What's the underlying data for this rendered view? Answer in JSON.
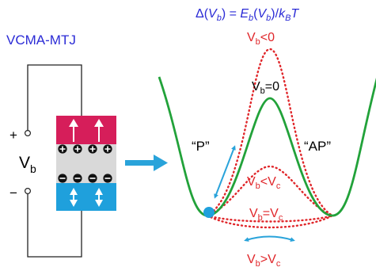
{
  "device_title": "VCMA-MTJ",
  "circuit": {
    "plus": "+",
    "minus": "−",
    "voltage": {
      "main": "V",
      "sub": "b"
    }
  },
  "barrier_formula": {
    "delta": "Δ(",
    "v1": "V",
    "v1_sub": "b",
    "mid": ") = ",
    "e": "E",
    "e_sub": "b",
    "paren_open": "(",
    "v2": "V",
    "v2_sub": "b",
    "paren_close": ")/",
    "k": "k",
    "k_sub": "B",
    "t": "T"
  },
  "states": {
    "parallel": "“P”",
    "antiparallel": "“AP”"
  },
  "curve_labels": {
    "v_lt_0": {
      "v": "V",
      "sub": "b",
      "rel": "<0"
    },
    "v_eq_0": {
      "v": "V",
      "sub": "b",
      "rel": "=0"
    },
    "v_lt_vc": {
      "v": "V",
      "sub": "b",
      "rel": "<V",
      "rel_sub": "c"
    },
    "v_eq_vc": {
      "v": "V",
      "sub": "b",
      "rel": "=V",
      "rel_sub": "c"
    },
    "v_gt_vc": {
      "v": "V",
      "sub": "b",
      "rel": ">V",
      "rel_sub": "c"
    }
  },
  "colors": {
    "title_blue": "#2b2bd6",
    "top_layer": "#d61e5a",
    "bottom_layer": "#1fa0dc",
    "barrier_layer": "#d9d9d9",
    "curve_green": "#22a23a",
    "curve_red": "#e0262a",
    "arrow_cyan": "#29a3da",
    "wire": "#222222"
  }
}
